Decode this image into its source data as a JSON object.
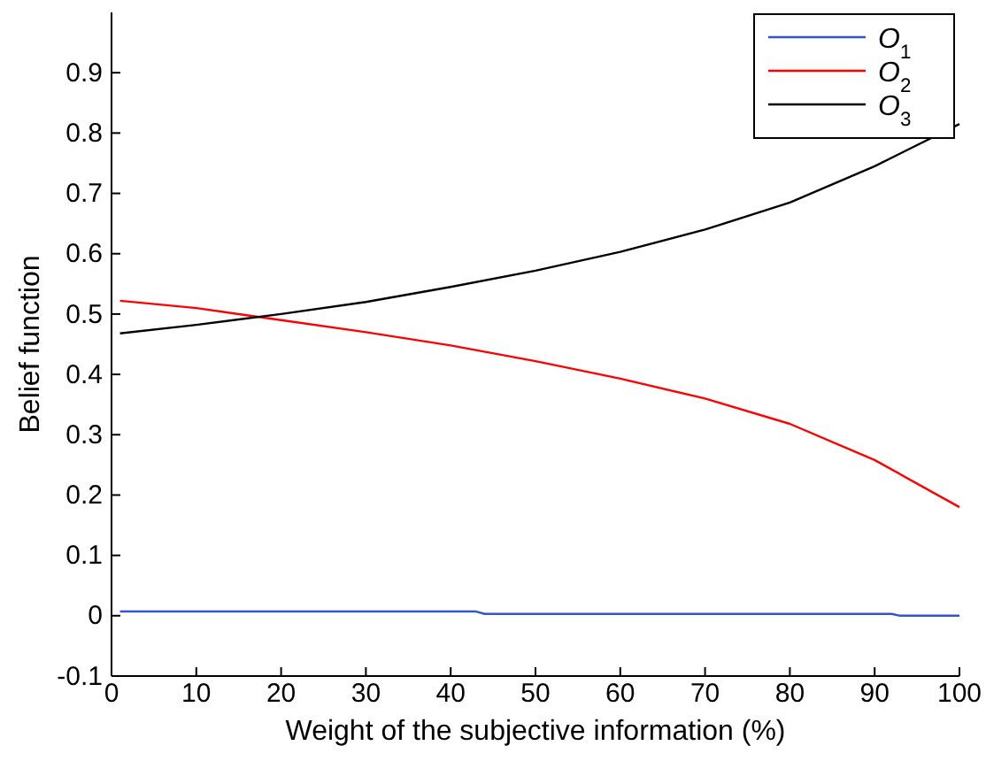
{
  "chart_data": {
    "type": "line",
    "xlabel": "Weight of the subjective information (%)",
    "ylabel": "Belief function",
    "xlim": [
      0,
      100
    ],
    "xticks": [
      0,
      10,
      20,
      30,
      40,
      50,
      60,
      70,
      80,
      90,
      100
    ],
    "ylim": [
      -0.1,
      1.0
    ],
    "yticks": [
      -0.1,
      0,
      0.1,
      0.2,
      0.3,
      0.4,
      0.5,
      0.6,
      0.7,
      0.8,
      0.9
    ],
    "grid": false,
    "legend": "top right",
    "line_style": "solid",
    "marker": "none",
    "series": [
      {
        "name": "O$_{1}$",
        "color": "#3355cc",
        "x": [
          1,
          10,
          20,
          30,
          43,
          44,
          60,
          80,
          92,
          93,
          100
        ],
        "values": [
          0.007,
          0.007,
          0.007,
          0.007,
          0.007,
          0.003,
          0.003,
          0.003,
          0.003,
          0.0,
          0.0
        ]
      },
      {
        "name": "O$_{2}$",
        "color": "#ff0000",
        "x": [
          1,
          10,
          20,
          30,
          40,
          50,
          60,
          70,
          80,
          90,
          100
        ],
        "values": [
          0.522,
          0.51,
          0.49,
          0.47,
          0.448,
          0.422,
          0.393,
          0.36,
          0.318,
          0.258,
          0.18
        ]
      },
      {
        "name": "O$_{3}$",
        "color": "#000000",
        "x": [
          1,
          10,
          20,
          30,
          40,
          50,
          60,
          70,
          80,
          90,
          100
        ],
        "values": [
          0.468,
          0.482,
          0.5,
          0.52,
          0.545,
          0.572,
          0.603,
          0.64,
          0.685,
          0.745,
          0.815
        ]
      }
    ]
  }
}
